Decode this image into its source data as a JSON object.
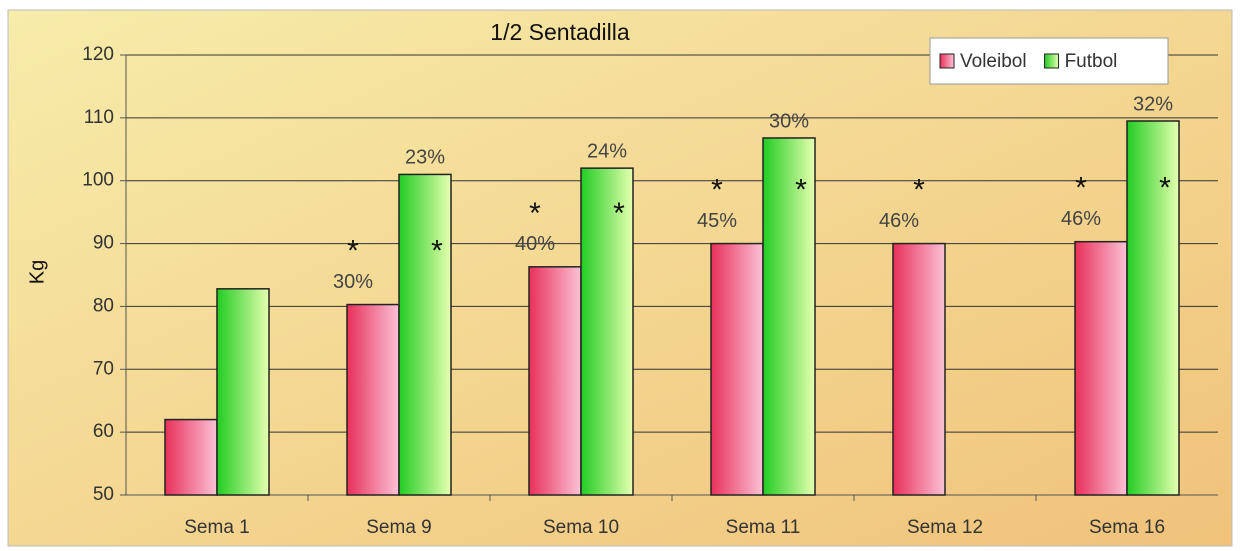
{
  "chart_data": {
    "type": "bar",
    "title": "1/2 Sentadilla",
    "y_label": "Kg",
    "categories": [
      "Sema 1",
      "Sema 9",
      "Sema 10",
      "Sema 11",
      "Sema 12",
      "Sema 16"
    ],
    "series": [
      {
        "name": "Voleibol",
        "color": "#e8305a",
        "values": [
          62,
          80.3,
          86.3,
          90,
          90,
          90.3
        ],
        "annotations": [
          null,
          "30%",
          "40%",
          "45%",
          "46%",
          "46%"
        ],
        "markers": [
          null,
          "*",
          "*",
          "*",
          "*",
          "*"
        ]
      },
      {
        "name": "Futbol",
        "color": "#22cc22",
        "values": [
          82.8,
          101,
          102,
          106.8,
          null,
          109.5
        ],
        "annotations": [
          null,
          "23%",
          "24%",
          "30%",
          null,
          "32%"
        ],
        "markers": [
          null,
          "*",
          "*",
          "*",
          null,
          "*"
        ]
      }
    ],
    "ylim": [
      50,
      120
    ],
    "yticks": [
      50,
      60,
      70,
      80,
      90,
      100,
      110,
      120
    ],
    "grid": true,
    "legend": "top-right"
  }
}
